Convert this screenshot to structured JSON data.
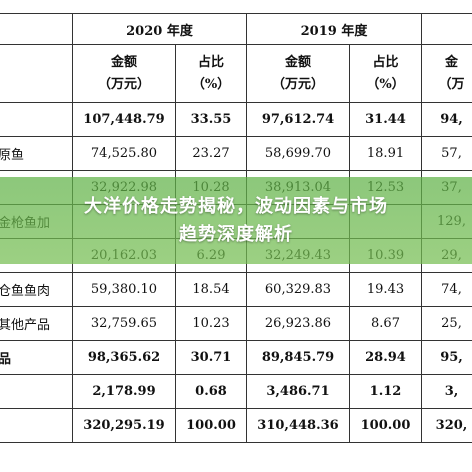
{
  "table": {
    "year_headers": [
      "2020 年度",
      "2019 年度"
    ],
    "col_headers": [
      [
        "金额",
        "（万元）"
      ],
      [
        "占比",
        "（%）"
      ],
      [
        "金额",
        "（万元）"
      ],
      [
        "占比",
        "（%）"
      ],
      [
        "金",
        "（万"
      ]
    ],
    "rows": [
      {
        "label": "",
        "cells": [
          "107,448.79",
          "33.55",
          "97,612.74",
          "31.44",
          "94,"
        ],
        "bold": true
      },
      {
        "label": "原鱼",
        "cells": [
          "74,525.80",
          "23.27",
          "58,699.70",
          "18.91",
          "57,"
        ],
        "bold": false
      },
      {
        "label": "",
        "cells": [
          "32,922.98",
          "10.28",
          "38,913.04",
          "12.53",
          "37,"
        ],
        "bold": false
      },
      {
        "label": "金枪鱼加",
        "cells": [
          "",
          "",
          "",
          "",
          "129,"
        ],
        "bold": false
      },
      {
        "label": "",
        "cells": [
          "20,162.03",
          "6.29",
          "32,249.43",
          "10.39",
          "29,"
        ],
        "bold": false
      },
      {
        "label": "仓鱼鱼肉",
        "cells": [
          "59,380.10",
          "18.54",
          "60,329.83",
          "19.43",
          "74,"
        ],
        "bold": false
      },
      {
        "label": "其他产品",
        "cells": [
          "32,759.65",
          "10.23",
          "26,923.86",
          "8.67",
          "25,"
        ],
        "bold": false
      },
      {
        "label": "品",
        "cells": [
          "98,365.62",
          "30.71",
          "89,845.79",
          "28.94",
          "95,"
        ],
        "bold": true
      },
      {
        "label": "",
        "cells": [
          "2,178.99",
          "0.68",
          "3,486.71",
          "1.12",
          "3,"
        ],
        "bold": true
      },
      {
        "label": "",
        "cells": [
          "320,295.19",
          "100.00",
          "310,448.36",
          "100.00",
          "320,"
        ],
        "bold": true
      }
    ]
  },
  "banner": {
    "line1": "大洋价格走势揭秘，波动因素与市场",
    "line2": "趋势深度解析"
  }
}
